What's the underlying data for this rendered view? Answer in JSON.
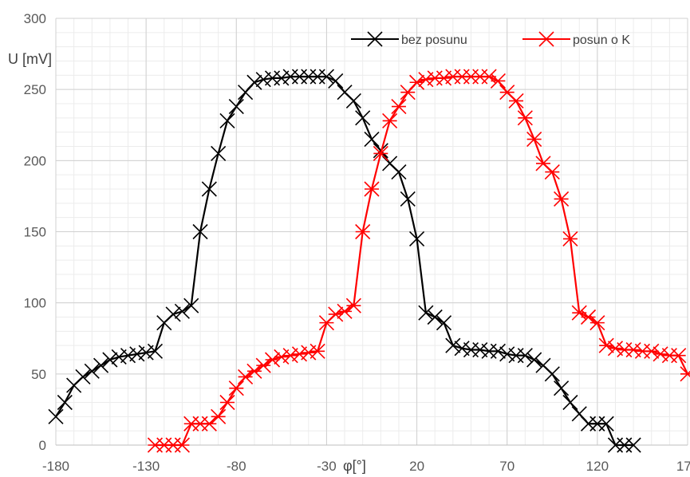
{
  "chart_data": {
    "type": "line",
    "title": "",
    "xlabel": "φ[°]",
    "ylabel": "U [mV]",
    "xlim": [
      -180,
      170
    ],
    "ylim": [
      0,
      300
    ],
    "x_ticks": [
      -180,
      -130,
      -80,
      -30,
      20,
      70,
      120,
      170
    ],
    "y_ticks": [
      0,
      50,
      100,
      150,
      200,
      250,
      300
    ],
    "grid": true,
    "legend_position": "top-right",
    "series": [
      {
        "name": "bez posunu",
        "color": "#000000",
        "marker": "x",
        "x": [
          -180,
          -175,
          -170,
          -165,
          -160,
          -155,
          -150,
          -145,
          -140,
          -135,
          -130,
          -125,
          -120,
          -115,
          -110,
          -105,
          -100,
          -95,
          -90,
          -85,
          -80,
          -75,
          -70,
          -65,
          -60,
          -55,
          -50,
          -45,
          -40,
          -35,
          -30,
          -25,
          -20,
          -15,
          -10,
          -5,
          0,
          5,
          10,
          15,
          20,
          25,
          30,
          35,
          40,
          45,
          50,
          55,
          60,
          65,
          70,
          75,
          80,
          85,
          90,
          95,
          100,
          105,
          110,
          115,
          120,
          125,
          130,
          135,
          140
        ],
        "y": [
          20,
          30,
          42,
          48,
          52,
          56,
          60,
          62,
          63,
          64,
          65,
          66,
          86,
          92,
          94,
          98,
          150,
          180,
          205,
          228,
          238,
          248,
          255,
          257,
          258,
          258,
          259,
          259,
          259,
          259,
          259,
          256,
          248,
          242,
          230,
          215,
          207,
          198,
          192,
          173,
          145,
          93,
          90,
          86,
          70,
          68,
          67,
          67,
          66,
          66,
          64,
          63,
          63,
          60,
          56,
          50,
          40,
          30,
          22,
          15,
          15,
          15,
          0,
          0,
          0
        ]
      },
      {
        "name": "posun o K",
        "color": "#ff0000",
        "marker": "asterisk",
        "x": [
          -125,
          -120,
          -115,
          -110,
          -105,
          -100,
          -95,
          -90,
          -85,
          -80,
          -75,
          -70,
          -65,
          -60,
          -55,
          -50,
          -45,
          -40,
          -35,
          -30,
          -25,
          -20,
          -15,
          -10,
          -5,
          0,
          5,
          10,
          15,
          20,
          25,
          30,
          35,
          40,
          45,
          50,
          55,
          60,
          65,
          70,
          75,
          80,
          85,
          90,
          95,
          100,
          105,
          110,
          115,
          120,
          125,
          130,
          135,
          140,
          145,
          150,
          155,
          160,
          165,
          170
        ],
        "y": [
          0,
          0,
          0,
          0,
          15,
          15,
          15,
          20,
          30,
          40,
          48,
          52,
          56,
          60,
          62,
          63,
          64,
          65,
          66,
          86,
          92,
          94,
          98,
          150,
          180,
          205,
          228,
          238,
          248,
          255,
          257,
          258,
          258,
          259,
          259,
          259,
          259,
          259,
          256,
          248,
          242,
          230,
          215,
          198,
          192,
          173,
          145,
          93,
          90,
          86,
          70,
          68,
          67,
          67,
          66,
          66,
          64,
          63,
          63,
          50
        ]
      }
    ]
  }
}
